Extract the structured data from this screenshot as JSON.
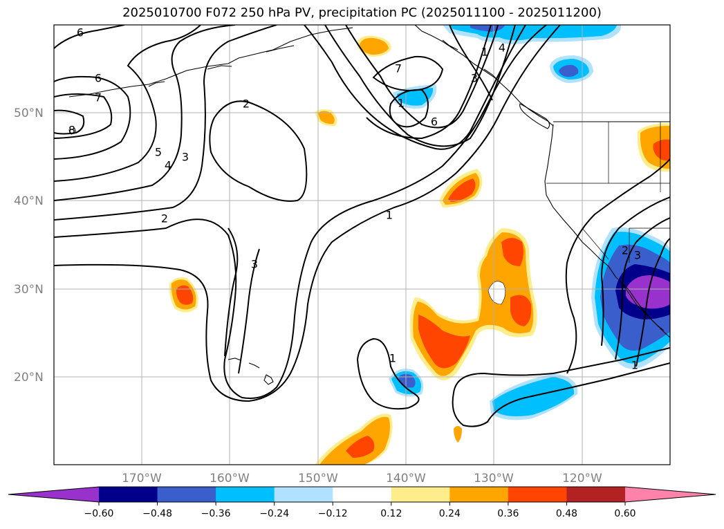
{
  "title": "2025010700 F072 250 hPa PV, precipitation PC (2025011100 - 2025011200)",
  "latitude_labels": [
    "50°N",
    "40°N",
    "30°N",
    "20°N"
  ],
  "longitude_labels": [
    "170°W",
    "160°W",
    "150°W",
    "140°W",
    "130°W",
    "120°W"
  ],
  "contour_labels": [
    "6",
    "6",
    "7",
    "8",
    "5",
    "4",
    "3",
    "2",
    "2",
    "7",
    "1",
    "6",
    "4",
    "3",
    "1",
    "3",
    "1",
    "1",
    "2",
    "3",
    "1"
  ],
  "colorbar": {
    "ticks": [
      "−0.60",
      "−0.48",
      "−0.36",
      "−0.24",
      "−0.12",
      "0.12",
      "0.24",
      "0.36",
      "0.48",
      "0.60"
    ],
    "colors": [
      "#9932cc",
      "#00008b",
      "#3a5fcd",
      "#00bfff",
      "#b0e2ff",
      "#ffffff",
      "#ffec8b",
      "#ffa500",
      "#ff4500",
      "#b22222",
      "#ff82ab"
    ]
  },
  "shading_colors": {
    "light_blue": "#b0e2ff",
    "sky": "#00bfff",
    "royal": "#3a5fcd",
    "navy": "#00008b",
    "purple": "#9932cc",
    "yellow": "#ffec8b",
    "orange": "#ffa500",
    "red": "#ff4500"
  }
}
